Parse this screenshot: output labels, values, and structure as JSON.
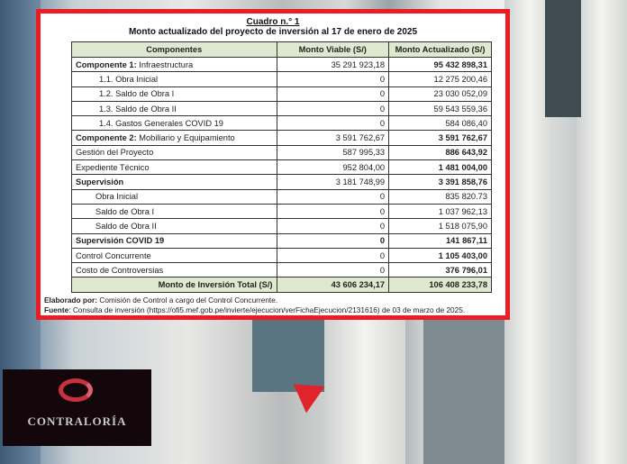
{
  "table": {
    "caption": "Cuadro n.° 1",
    "title": "Monto actualizado del proyecto de inversión al 17 de enero de 2025",
    "headers": [
      "Componentes",
      "Monto Viable (S/)",
      "Monto Actualizado (S/)"
    ],
    "rows": [
      {
        "label_bold": "Componente 1:",
        "label": "Infraestructura",
        "viable": "35 291 923,18",
        "actualizado": "95 432 898,31"
      },
      {
        "label": "1.1.  Obra Inicial",
        "viable": "0",
        "actualizado": "12 275 200,46"
      },
      {
        "label": "1.2.  Saldo de Obra I",
        "viable": "0",
        "actualizado": "23 030 052,09"
      },
      {
        "label": "1.3.  Saldo de Obra II",
        "viable": "0",
        "actualizado": "59 543 559,36"
      },
      {
        "label": "1.4.  Gastos Generales COVID 19",
        "viable": "0",
        "actualizado": "584 086,40"
      },
      {
        "label_bold": "Componente 2:",
        "label": "Mobiliario y Equipamiento",
        "viable": "3 591 762,67",
        "actualizado": "3 591 762,67"
      },
      {
        "label": "Gestión del Proyecto",
        "viable": "587 995,33",
        "actualizado": "886 643,92"
      },
      {
        "label": "Expediente Técnico",
        "viable": "952 804,00",
        "actualizado": "1 481 004,00"
      },
      {
        "label_bold": "Supervisión",
        "viable": "3 181 748,99",
        "actualizado": "3 391 858,76"
      },
      {
        "label": "Obra Inicial",
        "viable": "0",
        "actualizado": "835 820.73"
      },
      {
        "label": "Saldo de Obra I",
        "viable": "0",
        "actualizado": "1 037 962,13"
      },
      {
        "label": "Saldo de Obra II",
        "viable": "0",
        "actualizado": "1 518 075,90"
      },
      {
        "label_bold": "Supervisión COVID 19",
        "viable": "0",
        "actualizado": "141 867,11"
      },
      {
        "label": "Control Concurrente",
        "viable": "0",
        "actualizado": "1 105 403,00"
      },
      {
        "label": "Costo de Controversias",
        "viable": "0",
        "actualizado": "376 796,01"
      }
    ],
    "total": {
      "label": "Monto de Inversión Total (S/)",
      "viable": "43 606 234,17",
      "actualizado": "106 408 233,78"
    },
    "elaborado_label": "Elaborado por:",
    "elaborado": " Comisión de Control a cargo del Control Concurrente.",
    "fuente_label": "Fuente",
    "fuente": ": Consulta de inversión (https://ofi5.mef.gob.pe/invierte/ejecucion/verFichaEjecucion/2131616) de 03 de marzo de 2025."
  },
  "logo": {
    "text": "CONTRALORÍA"
  },
  "colors": {
    "frame": "#ec1c24",
    "header_bg": "#dfe9cf"
  }
}
